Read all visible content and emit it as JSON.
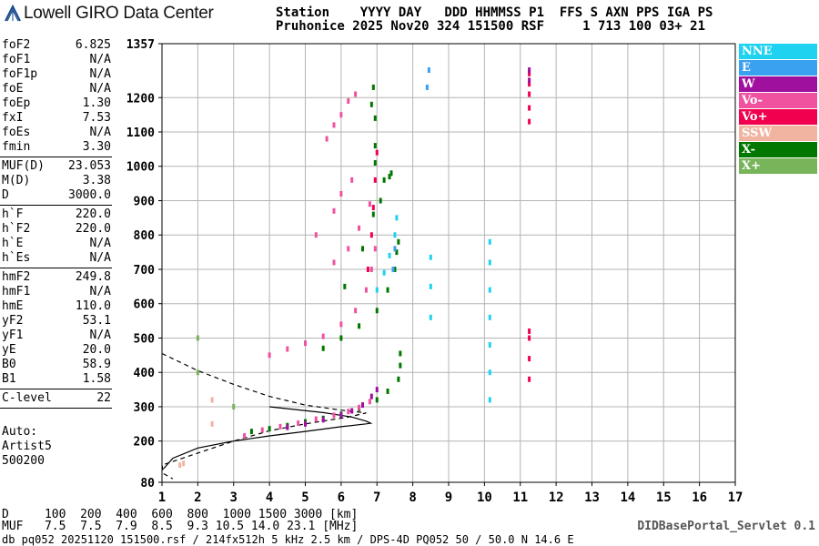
{
  "logo": {
    "text": "Lowell GIRO Data Center"
  },
  "header": {
    "row1": "Station    YYYY DAY   DDD HHMMSS P1  FFS S AXN PPS IGA PS",
    "row2": "Pruhonice 2025 Nov20 324 151500 RSF     1 713 100 03+ 21"
  },
  "params": {
    "group1": [
      {
        "k": "foF2",
        "v": "6.825"
      },
      {
        "k": "foF1",
        "v": "N/A"
      },
      {
        "k": "foF1p",
        "v": "N/A"
      },
      {
        "k": "foE",
        "v": "N/A"
      },
      {
        "k": "foEp",
        "v": "1.30"
      },
      {
        "k": "fxI",
        "v": "7.53"
      },
      {
        "k": "foEs",
        "v": "N/A"
      },
      {
        "k": "fmin",
        "v": "3.30"
      }
    ],
    "group2": [
      {
        "k": "MUF(D)",
        "v": "23.053"
      },
      {
        "k": "M(D)",
        "v": "3.38"
      },
      {
        "k": "D",
        "v": "3000.0"
      }
    ],
    "group3": [
      {
        "k": "h`F",
        "v": "220.0"
      },
      {
        "k": "h`F2",
        "v": "220.0"
      },
      {
        "k": "h`E",
        "v": "N/A"
      },
      {
        "k": "h`Es",
        "v": "N/A"
      }
    ],
    "group4": [
      {
        "k": "hmF2",
        "v": "249.8"
      },
      {
        "k": "hmF1",
        "v": "N/A"
      },
      {
        "k": "hmE",
        "v": "110.0"
      },
      {
        "k": "yF2",
        "v": "53.1"
      },
      {
        "k": "yF1",
        "v": "N/A"
      },
      {
        "k": "yE",
        "v": "20.0"
      },
      {
        "k": "B0",
        "v": "58.9"
      },
      {
        "k": "B1",
        "v": "1.58"
      }
    ],
    "group5": [
      {
        "k": "C-level",
        "v": "22"
      }
    ]
  },
  "auto": {
    "line1": "Auto:",
    "line2": "Artist5",
    "line3": "500200"
  },
  "legend": [
    {
      "label": "NNE",
      "color": "#1ed2f0"
    },
    {
      "label": "E",
      "color": "#3aa0f0"
    },
    {
      "label": "W",
      "color": "#a0109e"
    },
    {
      "label": "Vo-",
      "color": "#f052a0"
    },
    {
      "label": "Vo+",
      "color": "#f0004e"
    },
    {
      "label": "SSW",
      "color": "#f0b4a0"
    },
    {
      "label": "X-",
      "color": "#007800"
    },
    {
      "label": "X+",
      "color": "#78b45a"
    }
  ],
  "footer": {
    "d_row": "D     100  200  400  600  800  1000 1500 3000 [km]",
    "muf_row": "MUF   7.5  7.5  7.9  8.5  9.3 10.5 14.0 23.1 [MHz]",
    "info": "db pq052 20251120 151500.rsf / 214fx512h 5 kHz 2.5 km / DPS-4D PQ052 50 / 50.0 N 14.6 E",
    "portal": "DIDBasePortal_Servlet 0.1"
  },
  "chart_data": {
    "type": "scatter",
    "title": "",
    "xlabel": "",
    "ylabel": "",
    "xlim": [
      1,
      17
    ],
    "ylim": [
      80,
      1357
    ],
    "x_ticks": [
      1,
      2,
      3,
      4,
      5,
      6,
      7,
      8,
      9,
      10,
      11,
      12,
      13,
      14,
      15,
      16,
      17
    ],
    "y_ticks": [
      80,
      200,
      300,
      400,
      500,
      600,
      700,
      800,
      900,
      1000,
      1100,
      1200,
      1357
    ],
    "grid": true,
    "series": [
      {
        "name": "X-",
        "color": "#007800",
        "points": [
          [
            3.5,
            228
          ],
          [
            4.0,
            236
          ],
          [
            4.5,
            245
          ],
          [
            5.0,
            256
          ],
          [
            5.5,
            266
          ],
          [
            6.0,
            278
          ],
          [
            6.5,
            295
          ],
          [
            7.0,
            320
          ],
          [
            7.3,
            345
          ],
          [
            7.6,
            380
          ],
          [
            7.65,
            420
          ],
          [
            7.65,
            455
          ],
          [
            5.5,
            470
          ],
          [
            6.0,
            500
          ],
          [
            6.5,
            535
          ],
          [
            7.0,
            580
          ],
          [
            7.3,
            640
          ],
          [
            7.5,
            700
          ],
          [
            7.55,
            750
          ],
          [
            7.6,
            780
          ],
          [
            6.1,
            650
          ],
          [
            6.6,
            760
          ],
          [
            6.9,
            860
          ],
          [
            7.1,
            900
          ],
          [
            7.2,
            960
          ],
          [
            7.35,
            970
          ],
          [
            7.4,
            980
          ],
          [
            6.95,
            1010
          ],
          [
            6.95,
            1060
          ],
          [
            6.95,
            1140
          ],
          [
            6.85,
            1180
          ],
          [
            6.9,
            1230
          ]
        ]
      },
      {
        "name": "Vo-",
        "color": "#f052a0",
        "points": [
          [
            3.3,
            215
          ],
          [
            3.8,
            232
          ],
          [
            4.3,
            242
          ],
          [
            4.8,
            252
          ],
          [
            5.3,
            264
          ],
          [
            5.8,
            275
          ],
          [
            6.2,
            286
          ],
          [
            6.5,
            298
          ],
          [
            6.8,
            315
          ],
          [
            4.0,
            450
          ],
          [
            4.5,
            468
          ],
          [
            5.0,
            485
          ],
          [
            5.5,
            505
          ],
          [
            6.0,
            540
          ],
          [
            6.4,
            580
          ],
          [
            6.7,
            640
          ],
          [
            6.85,
            700
          ],
          [
            6.95,
            760
          ],
          [
            5.8,
            720
          ],
          [
            6.2,
            760
          ],
          [
            6.5,
            820
          ],
          [
            6.8,
            890
          ],
          [
            5.3,
            800
          ],
          [
            5.8,
            870
          ],
          [
            6.0,
            920
          ],
          [
            6.3,
            960
          ],
          [
            5.6,
            1080
          ],
          [
            5.8,
            1120
          ],
          [
            6.0,
            1150
          ],
          [
            6.2,
            1190
          ],
          [
            6.4,
            1210
          ]
        ]
      },
      {
        "name": "Vo+",
        "color": "#f0004e",
        "points": [
          [
            6.85,
            800
          ],
          [
            6.9,
            880
          ],
          [
            6.95,
            960
          ],
          [
            7.0,
            1040
          ],
          [
            6.75,
            700
          ],
          [
            11.25,
            380
          ],
          [
            11.25,
            440
          ],
          [
            11.25,
            500
          ],
          [
            11.25,
            520
          ],
          [
            11.25,
            1130
          ],
          [
            11.25,
            1170
          ],
          [
            11.25,
            1210
          ],
          [
            11.25,
            1240
          ],
          [
            11.25,
            1270
          ]
        ]
      },
      {
        "name": "W",
        "color": "#a0109e",
        "points": [
          [
            4.5,
            240
          ],
          [
            5.0,
            250
          ],
          [
            5.5,
            262
          ],
          [
            6.0,
            276
          ],
          [
            6.3,
            288
          ],
          [
            6.6,
            305
          ],
          [
            6.85,
            330
          ],
          [
            7.0,
            350
          ],
          [
            11.25,
            1250
          ],
          [
            11.25,
            1280
          ]
        ]
      },
      {
        "name": "NNE",
        "color": "#1ed2f0",
        "points": [
          [
            7.0,
            640
          ],
          [
            7.2,
            690
          ],
          [
            7.35,
            740
          ],
          [
            7.5,
            800
          ],
          [
            7.55,
            850
          ],
          [
            8.5,
            560
          ],
          [
            8.5,
            650
          ],
          [
            8.5,
            735
          ],
          [
            10.15,
            320
          ],
          [
            10.15,
            400
          ],
          [
            10.15,
            480
          ],
          [
            10.15,
            560
          ],
          [
            10.15,
            640
          ],
          [
            10.15,
            720
          ],
          [
            10.15,
            780
          ]
        ]
      },
      {
        "name": "E",
        "color": "#3aa0f0",
        "points": [
          [
            7.45,
            700
          ],
          [
            7.5,
            760
          ],
          [
            8.4,
            1230
          ],
          [
            8.45,
            1280
          ]
        ]
      },
      {
        "name": "SSW",
        "color": "#f0b4a0",
        "points": [
          [
            2.4,
            320
          ],
          [
            2.4,
            250
          ],
          [
            1.5,
            130
          ],
          [
            1.6,
            135
          ]
        ]
      },
      {
        "name": "X+",
        "color": "#78b45a",
        "points": [
          [
            2.0,
            400
          ],
          [
            2.0,
            500
          ],
          [
            3.0,
            300
          ]
        ]
      }
    ],
    "profile_solid": [
      [
        1.05,
        120
      ],
      [
        1.3,
        150
      ],
      [
        2.0,
        180
      ],
      [
        3.0,
        200
      ],
      [
        4.0,
        215
      ],
      [
        5.0,
        228
      ],
      [
        6.0,
        242
      ],
      [
        6.7,
        250
      ],
      [
        6.825,
        252
      ],
      [
        6.7,
        258
      ],
      [
        6.3,
        270
      ],
      [
        5.5,
        283
      ],
      [
        4.0,
        300
      ]
    ],
    "profile_dashed": [
      [
        1.0,
        455
      ],
      [
        2.0,
        405
      ],
      [
        3.0,
        365
      ],
      [
        4.0,
        330
      ],
      [
        5.0,
        305
      ],
      [
        6.0,
        290
      ],
      [
        6.7,
        282
      ],
      [
        6.2,
        270
      ],
      [
        5.0,
        250
      ],
      [
        4.0,
        230
      ],
      [
        3.0,
        200
      ],
      [
        2.0,
        165
      ],
      [
        1.0,
        130
      ],
      [
        1.05,
        105
      ],
      [
        1.3,
        90
      ]
    ]
  }
}
